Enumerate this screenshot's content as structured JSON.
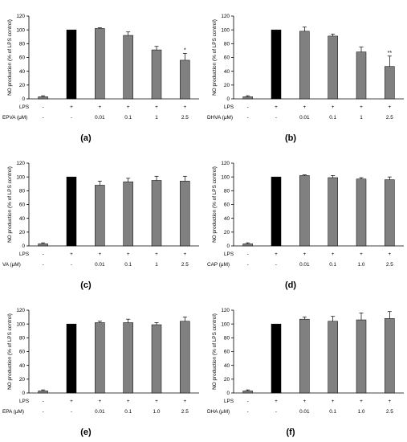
{
  "figure": {
    "ylabel": "NO production (% of LPS control)",
    "row_labels": [
      "LPS"
    ],
    "lps_marks": [
      "-",
      "+",
      "+",
      "+",
      "+",
      "+"
    ],
    "ylim": [
      0,
      120
    ],
    "yticks": [
      0,
      20,
      40,
      60,
      80,
      100,
      120
    ],
    "colors": {
      "control_bar": "#000000",
      "treatment_bar": "#808080",
      "axis": "#000000"
    }
  },
  "chart_data": [
    {
      "type": "bar",
      "panel_label": "(a)",
      "treatment_label": "EPVA (μM)",
      "categories": [
        "-",
        "-",
        "0.01",
        "0.1",
        "1",
        "2.5"
      ],
      "values": [
        3,
        100,
        102,
        92,
        71,
        56
      ],
      "errors": [
        1.5,
        0,
        1,
        5,
        5,
        10
      ],
      "significance": [
        "",
        "",
        "",
        "",
        "",
        "*"
      ],
      "ylim": [
        0,
        120
      ]
    },
    {
      "type": "bar",
      "panel_label": "(b)",
      "treatment_label": "DHVA (μM)",
      "categories": [
        "-",
        "-",
        "0.01",
        "0.1",
        "1",
        "2.5"
      ],
      "values": [
        3,
        100,
        98,
        91,
        68,
        47
      ],
      "errors": [
        1.5,
        0,
        6,
        3,
        7,
        15
      ],
      "significance": [
        "",
        "",
        "",
        "",
        "",
        "**"
      ],
      "ylim": [
        0,
        120
      ]
    },
    {
      "type": "bar",
      "panel_label": "(c)",
      "treatment_label": "VA (μM)",
      "categories": [
        "-",
        "-",
        "0.01",
        "0.1",
        "1",
        "2.5"
      ],
      "values": [
        3,
        100,
        88,
        93,
        95,
        94
      ],
      "errors": [
        1.5,
        0,
        6,
        5,
        6,
        7
      ],
      "significance": [
        "",
        "",
        "",
        "",
        "",
        ""
      ],
      "ylim": [
        0,
        120
      ]
    },
    {
      "type": "bar",
      "panel_label": "(d)",
      "treatment_label": "CAP (μM)",
      "categories": [
        "-",
        "-",
        "0.01",
        "0.1",
        "1.0",
        "2.5"
      ],
      "values": [
        3,
        100,
        102,
        99,
        97,
        96
      ],
      "errors": [
        1.5,
        0,
        1,
        3,
        2,
        4
      ],
      "significance": [
        "",
        "",
        "",
        "",
        "",
        ""
      ],
      "ylim": [
        0,
        120
      ]
    },
    {
      "type": "bar",
      "panel_label": "(e)",
      "treatment_label": "EPA (μM)",
      "categories": [
        "-",
        "-",
        "0.01",
        "0.1",
        "1.0",
        "2.5"
      ],
      "values": [
        3,
        100,
        102,
        102,
        99,
        104
      ],
      "errors": [
        1.5,
        0,
        2,
        5,
        3,
        6
      ],
      "significance": [
        "",
        "",
        "",
        "",
        "",
        ""
      ],
      "ylim": [
        0,
        120
      ]
    },
    {
      "type": "bar",
      "panel_label": "(f)",
      "treatment_label": "DHA (μM)",
      "categories": [
        "-",
        "-",
        "0.01",
        "0.1",
        "1.0",
        "2.5"
      ],
      "values": [
        3,
        100,
        107,
        104,
        106,
        108
      ],
      "errors": [
        1.5,
        0,
        3,
        7,
        10,
        10
      ],
      "significance": [
        "",
        "",
        "",
        "",
        "",
        ""
      ],
      "ylim": [
        0,
        120
      ]
    }
  ]
}
